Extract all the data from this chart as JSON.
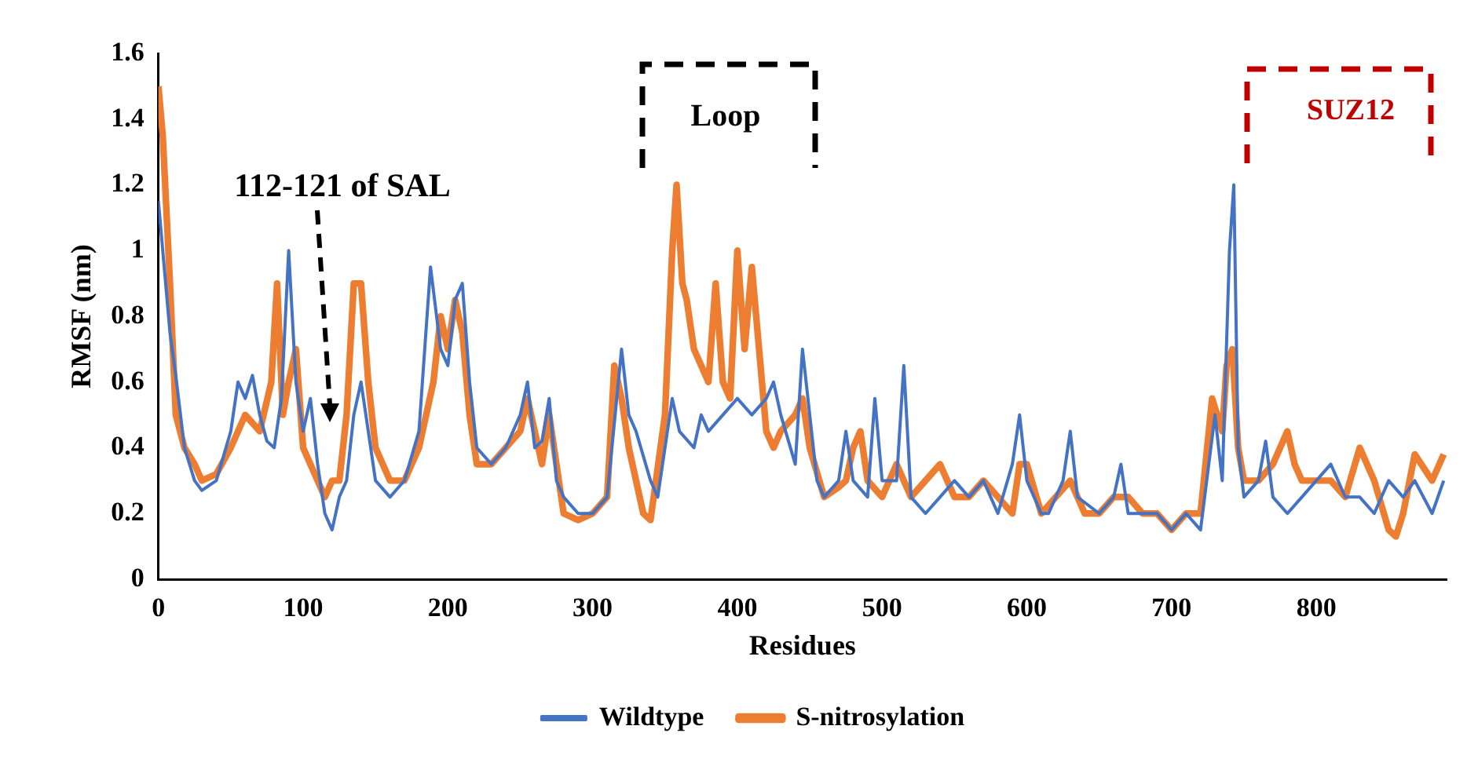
{
  "chart_data": {
    "type": "line",
    "xlabel": "Residues",
    "ylabel": "RMSF (nm)",
    "xlim": [
      0,
      890
    ],
    "xticks": [
      0,
      100,
      200,
      300,
      400,
      500,
      600,
      700,
      800
    ],
    "ylim": [
      0,
      1.6
    ],
    "yticks": [
      0,
      0.2,
      0.4,
      0.6,
      0.8,
      1,
      1.2,
      1.4,
      1.6
    ],
    "grid": false,
    "legend": "bottom",
    "marker": "none",
    "line_style": "solid",
    "annotations": [
      "112-121 of SAL",
      "Loop",
      "SUZ12"
    ],
    "series": [
      {
        "name": "Wildtype",
        "color": "#4472c4",
        "x": [
          0,
          3,
          8,
          12,
          18,
          25,
          30,
          40,
          50,
          55,
          60,
          65,
          70,
          75,
          80,
          85,
          90,
          95,
          100,
          105,
          110,
          115,
          120,
          125,
          130,
          135,
          140,
          145,
          150,
          160,
          170,
          180,
          188,
          195,
          200,
          205,
          210,
          215,
          220,
          230,
          240,
          250,
          255,
          260,
          265,
          270,
          275,
          280,
          290,
          295,
          300,
          310,
          320,
          325,
          330,
          340,
          345,
          350,
          355,
          360,
          370,
          375,
          380,
          390,
          400,
          410,
          420,
          425,
          430,
          440,
          445,
          450,
          455,
          460,
          470,
          475,
          480,
          490,
          495,
          500,
          510,
          515,
          520,
          530,
          540,
          550,
          560,
          570,
          580,
          590,
          595,
          600,
          610,
          615,
          625,
          630,
          635,
          650,
          660,
          665,
          670,
          680,
          690,
          700,
          710,
          720,
          730,
          735,
          740,
          743,
          746,
          750,
          760,
          765,
          770,
          780,
          790,
          800,
          810,
          820,
          830,
          840,
          850,
          860,
          868,
          880,
          888
        ],
        "values": [
          1.15,
          1.0,
          0.75,
          0.62,
          0.4,
          0.3,
          0.27,
          0.3,
          0.45,
          0.6,
          0.55,
          0.62,
          0.5,
          0.42,
          0.4,
          0.55,
          1.0,
          0.6,
          0.45,
          0.55,
          0.35,
          0.2,
          0.15,
          0.25,
          0.3,
          0.5,
          0.6,
          0.45,
          0.3,
          0.25,
          0.3,
          0.45,
          0.95,
          0.7,
          0.65,
          0.85,
          0.9,
          0.6,
          0.4,
          0.35,
          0.4,
          0.5,
          0.6,
          0.4,
          0.42,
          0.55,
          0.3,
          0.25,
          0.2,
          0.2,
          0.2,
          0.25,
          0.7,
          0.5,
          0.45,
          0.3,
          0.25,
          0.4,
          0.55,
          0.45,
          0.4,
          0.5,
          0.45,
          0.5,
          0.55,
          0.5,
          0.55,
          0.6,
          0.5,
          0.35,
          0.7,
          0.5,
          0.3,
          0.25,
          0.3,
          0.45,
          0.3,
          0.25,
          0.55,
          0.3,
          0.3,
          0.65,
          0.25,
          0.2,
          0.25,
          0.3,
          0.25,
          0.3,
          0.2,
          0.35,
          0.5,
          0.3,
          0.2,
          0.2,
          0.3,
          0.45,
          0.25,
          0.2,
          0.25,
          0.35,
          0.2,
          0.2,
          0.2,
          0.15,
          0.2,
          0.15,
          0.5,
          0.3,
          1.0,
          1.2,
          0.4,
          0.25,
          0.3,
          0.42,
          0.25,
          0.2,
          0.25,
          0.3,
          0.35,
          0.25,
          0.25,
          0.2,
          0.3,
          0.25,
          0.3,
          0.2,
          0.3
        ]
      },
      {
        "name": "S-nitrosylation",
        "color": "#ed7d31",
        "x": [
          0,
          3,
          8,
          12,
          18,
          25,
          30,
          40,
          50,
          60,
          70,
          78,
          82,
          86,
          90,
          95,
          100,
          110,
          115,
          120,
          125,
          130,
          135,
          140,
          145,
          150,
          160,
          170,
          180,
          190,
          195,
          200,
          205,
          210,
          215,
          220,
          230,
          240,
          250,
          255,
          265,
          270,
          280,
          290,
          300,
          310,
          315,
          320,
          325,
          335,
          340,
          350,
          355,
          358,
          362,
          365,
          370,
          375,
          380,
          385,
          390,
          395,
          400,
          405,
          410,
          415,
          420,
          425,
          430,
          440,
          445,
          450,
          460,
          470,
          475,
          480,
          485,
          490,
          500,
          505,
          510,
          520,
          530,
          540,
          550,
          560,
          570,
          580,
          590,
          595,
          600,
          610,
          620,
          630,
          640,
          650,
          660,
          670,
          680,
          690,
          700,
          710,
          720,
          728,
          735,
          738,
          742,
          746,
          750,
          760,
          770,
          780,
          785,
          790,
          800,
          810,
          820,
          830,
          840,
          850,
          855,
          860,
          868,
          880,
          888
        ],
        "values": [
          1.5,
          1.35,
          0.9,
          0.5,
          0.4,
          0.35,
          0.3,
          0.32,
          0.4,
          0.5,
          0.45,
          0.6,
          0.9,
          0.5,
          0.6,
          0.7,
          0.4,
          0.3,
          0.25,
          0.3,
          0.3,
          0.5,
          0.9,
          0.9,
          0.6,
          0.4,
          0.3,
          0.3,
          0.4,
          0.6,
          0.8,
          0.7,
          0.85,
          0.75,
          0.5,
          0.35,
          0.35,
          0.4,
          0.45,
          0.55,
          0.35,
          0.5,
          0.2,
          0.18,
          0.2,
          0.25,
          0.65,
          0.55,
          0.4,
          0.2,
          0.18,
          0.5,
          1.0,
          1.2,
          0.9,
          0.85,
          0.7,
          0.65,
          0.6,
          0.9,
          0.6,
          0.55,
          1.0,
          0.7,
          0.95,
          0.7,
          0.45,
          0.4,
          0.45,
          0.5,
          0.55,
          0.4,
          0.25,
          0.28,
          0.3,
          0.4,
          0.45,
          0.3,
          0.25,
          0.3,
          0.35,
          0.25,
          0.3,
          0.35,
          0.25,
          0.25,
          0.3,
          0.25,
          0.2,
          0.35,
          0.35,
          0.2,
          0.25,
          0.3,
          0.2,
          0.2,
          0.25,
          0.25,
          0.2,
          0.2,
          0.15,
          0.2,
          0.2,
          0.55,
          0.45,
          0.65,
          0.7,
          0.4,
          0.3,
          0.3,
          0.35,
          0.45,
          0.35,
          0.3,
          0.3,
          0.3,
          0.25,
          0.4,
          0.3,
          0.15,
          0.13,
          0.2,
          0.38,
          0.3,
          0.38
        ]
      }
    ]
  }
}
